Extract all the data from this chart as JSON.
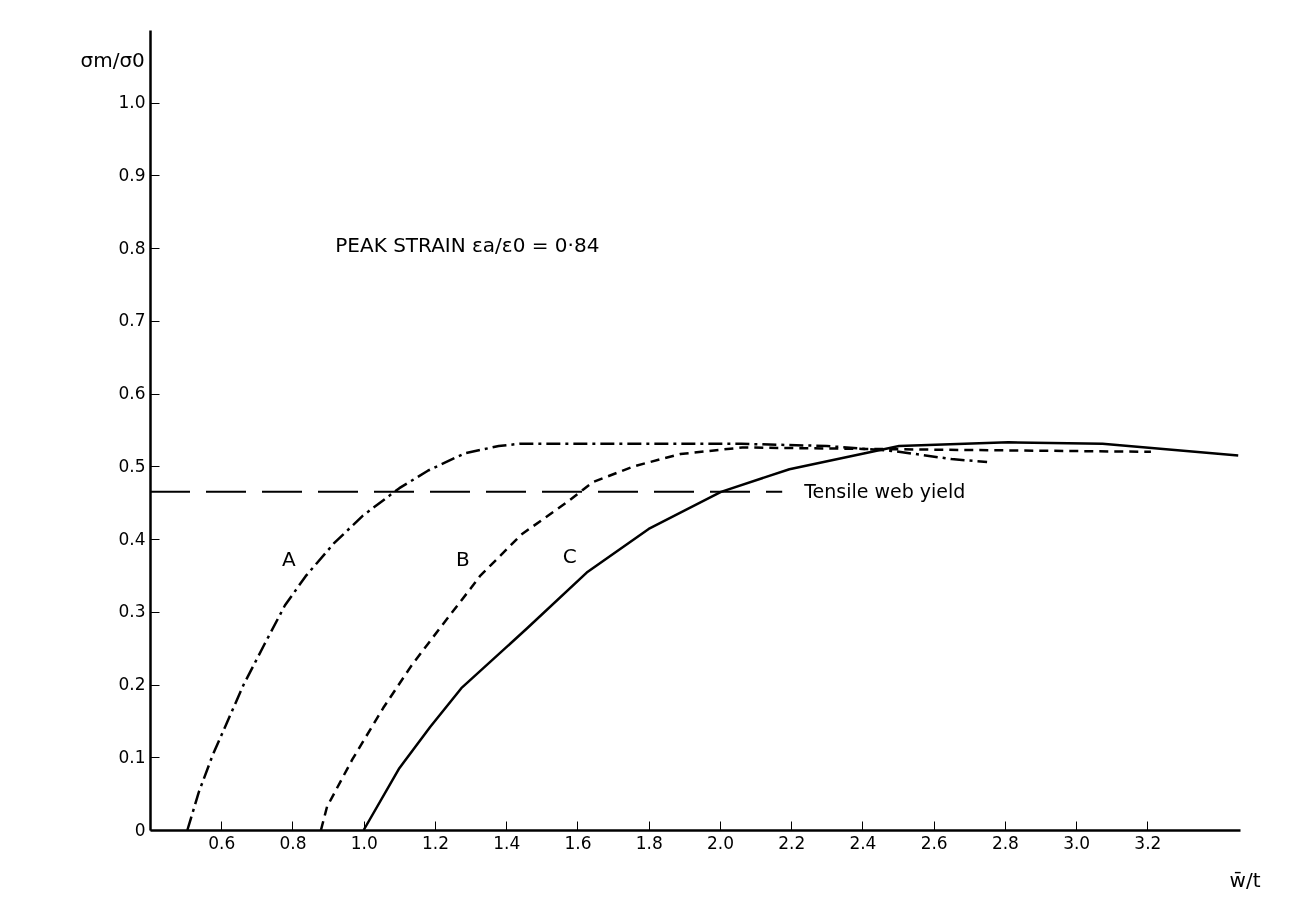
{
  "chart_data": {
    "type": "line",
    "xlabel": "w̄/t",
    "ylabel": "σm/σ0",
    "xlim": [
      0.4,
      3.46
    ],
    "ylim": [
      0,
      1.1
    ],
    "xticks": [
      0.6,
      0.8,
      {
        "value": 1,
        "label": "1.0"
      },
      1.2,
      1.4,
      1.6,
      1.8,
      {
        "value": 2,
        "label": "2.0"
      },
      2.2,
      2.4,
      2.6,
      2.8,
      {
        "value": 3,
        "label": "3.0"
      },
      3.2
    ],
    "yticks": [
      0,
      0.1,
      0.2,
      0.3,
      0.4,
      0.5,
      0.6,
      0.7,
      0.8,
      0.9,
      {
        "value": 1,
        "label": "1.0"
      }
    ],
    "series": [
      {
        "name": "A",
        "color": "#000000",
        "line_style": "dashdot",
        "x": [
          0.505,
          0.537,
          0.576,
          0.663,
          0.721,
          0.779,
          0.837,
          0.916,
          0.997,
          1.1,
          1.18,
          1.284,
          1.379,
          1.437,
          1.7,
          2.06,
          2.3,
          2.49,
          2.65,
          2.75
        ],
        "values": [
          0,
          0.052,
          0.103,
          0.2,
          0.255,
          0.309,
          0.349,
          0.394,
          0.432,
          0.47,
          0.494,
          0.518,
          0.528,
          0.531,
          0.531,
          0.531,
          0.528,
          0.521,
          0.51,
          0.506
        ]
      },
      {
        "name": "B",
        "color": "#000000",
        "line_style": "dashed",
        "x": [
          0.88,
          0.897,
          0.968,
          1.055,
          1.134,
          1.213,
          1.3,
          1.326,
          1.442,
          1.574,
          1.642,
          1.758,
          1.889,
          2.063,
          2.4,
          2.8,
          3.21
        ],
        "values": [
          0,
          0.032,
          0.097,
          0.168,
          0.226,
          0.277,
          0.332,
          0.349,
          0.406,
          0.452,
          0.478,
          0.5,
          0.517,
          0.526,
          0.524,
          0.522,
          0.52
        ]
      },
      {
        "name": "C",
        "color": "#000000",
        "line_style": "solid",
        "x": [
          1.0,
          1.1,
          1.187,
          1.274,
          1.458,
          1.626,
          1.8,
          2.003,
          2.195,
          2.397,
          2.503,
          2.81,
          3.074,
          3.455
        ],
        "values": [
          0,
          0.085,
          0.142,
          0.195,
          0.277,
          0.354,
          0.414,
          0.465,
          0.496,
          0.517,
          0.528,
          0.533,
          0.531,
          0.515
        ]
      }
    ],
    "ref_lines": [
      {
        "axis": "y",
        "value": 0.465,
        "label": "Tensile web yield",
        "line_style": "dashed"
      }
    ],
    "annotations": [
      "PEAK STRAIN εa/ε0 = 0·84"
    ],
    "grid": false
  }
}
